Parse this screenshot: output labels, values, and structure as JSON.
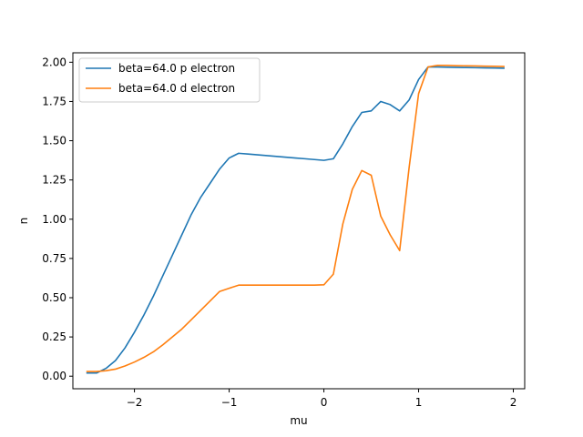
{
  "chart_data": {
    "type": "line",
    "title": "",
    "xlabel": "mu",
    "ylabel": "n",
    "xlim": [
      -2.65,
      2.12
    ],
    "ylim": [
      -0.08,
      2.06
    ],
    "xticks": [
      {
        "value": -2,
        "label": "−2"
      },
      {
        "value": -1,
        "label": "−1"
      },
      {
        "value": 0,
        "label": "0"
      },
      {
        "value": 1,
        "label": "1"
      },
      {
        "value": 2,
        "label": "2"
      }
    ],
    "yticks": [
      {
        "value": 0.0,
        "label": "0.00"
      },
      {
        "value": 0.25,
        "label": "0.25"
      },
      {
        "value": 0.5,
        "label": "0.50"
      },
      {
        "value": 0.75,
        "label": "0.75"
      },
      {
        "value": 1.0,
        "label": "1.00"
      },
      {
        "value": 1.25,
        "label": "1.25"
      },
      {
        "value": 1.5,
        "label": "1.50"
      },
      {
        "value": 1.75,
        "label": "1.75"
      },
      {
        "value": 2.0,
        "label": "2.00"
      }
    ],
    "grid": false,
    "legend_position": "upper-left",
    "series": [
      {
        "name": "beta=64.0 p electron",
        "color": "#1f77b4",
        "x": [
          -2.5,
          -2.4,
          -2.3,
          -2.2,
          -2.1,
          -2.0,
          -1.9,
          -1.8,
          -1.7,
          -1.6,
          -1.5,
          -1.4,
          -1.3,
          -1.2,
          -1.1,
          -1.0,
          -0.9,
          -0.8,
          -0.7,
          -0.6,
          -0.5,
          -0.4,
          -0.3,
          -0.2,
          -0.1,
          0.0,
          0.1,
          0.2,
          0.3,
          0.4,
          0.5,
          0.6,
          0.7,
          0.8,
          0.9,
          1.0,
          1.1,
          1.2,
          1.3,
          1.4,
          1.5,
          1.6,
          1.7,
          1.8,
          1.9
        ],
        "y": [
          0.02,
          0.02,
          0.05,
          0.1,
          0.18,
          0.28,
          0.39,
          0.51,
          0.64,
          0.77,
          0.9,
          1.03,
          1.14,
          1.23,
          1.32,
          1.39,
          1.42,
          1.415,
          1.41,
          1.405,
          1.4,
          1.395,
          1.39,
          1.385,
          1.38,
          1.375,
          1.385,
          1.48,
          1.59,
          1.68,
          1.69,
          1.75,
          1.73,
          1.69,
          1.76,
          1.89,
          1.97,
          1.97,
          1.968,
          1.967,
          1.966,
          1.965,
          1.964,
          1.963,
          1.962
        ]
      },
      {
        "name": "beta=64.0 d electron",
        "color": "#ff7f0e",
        "x": [
          -2.5,
          -2.4,
          -2.3,
          -2.2,
          -2.1,
          -2.0,
          -1.9,
          -1.8,
          -1.7,
          -1.6,
          -1.5,
          -1.4,
          -1.3,
          -1.2,
          -1.1,
          -1.0,
          -0.9,
          -0.8,
          -0.7,
          -0.6,
          -0.5,
          -0.4,
          -0.3,
          -0.2,
          -0.1,
          0.0,
          0.1,
          0.2,
          0.3,
          0.4,
          0.5,
          0.6,
          0.7,
          0.8,
          0.9,
          1.0,
          1.1,
          1.2,
          1.3,
          1.4,
          1.5,
          1.6,
          1.7,
          1.8,
          1.9
        ],
        "y": [
          0.03,
          0.03,
          0.035,
          0.045,
          0.065,
          0.09,
          0.12,
          0.155,
          0.2,
          0.25,
          0.3,
          0.36,
          0.42,
          0.48,
          0.54,
          0.56,
          0.58,
          0.58,
          0.58,
          0.58,
          0.58,
          0.58,
          0.58,
          0.58,
          0.58,
          0.582,
          0.65,
          0.97,
          1.19,
          1.31,
          1.28,
          1.02,
          0.9,
          0.8,
          1.33,
          1.8,
          1.97,
          1.98,
          1.98,
          1.978,
          1.977,
          1.976,
          1.975,
          1.974,
          1.973
        ]
      }
    ]
  }
}
